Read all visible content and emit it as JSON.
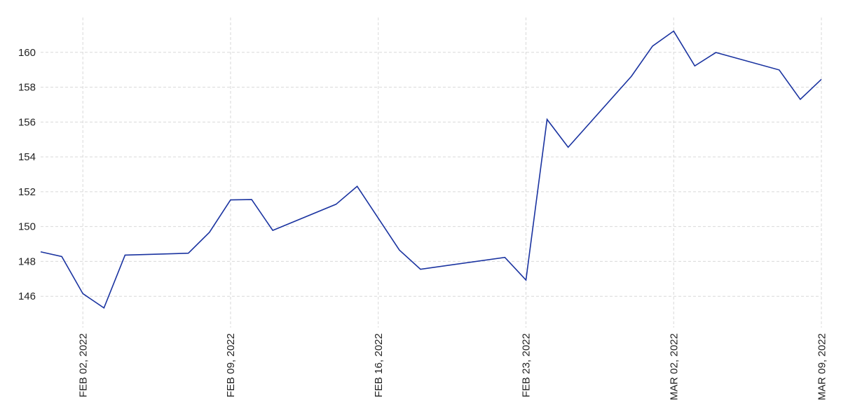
{
  "chart_data": {
    "type": "line",
    "title": "",
    "xlabel": "",
    "ylabel": "",
    "grid": true,
    "line_color": "#1a33a0",
    "xlim": [
      "2022-01-31",
      "2022-03-09"
    ],
    "ylim": [
      144.2,
      162.0
    ],
    "y_ticks": [
      146,
      148,
      150,
      152,
      154,
      156,
      158,
      160
    ],
    "x_ticks": [
      {
        "date": "2022-02-02",
        "label": "FEB 02, 2022"
      },
      {
        "date": "2022-02-09",
        "label": "FEB 09, 2022"
      },
      {
        "date": "2022-02-16",
        "label": "FEB 16, 2022"
      },
      {
        "date": "2022-02-23",
        "label": "FEB 23, 2022"
      },
      {
        "date": "2022-03-02",
        "label": "MAR 02, 2022"
      },
      {
        "date": "2022-03-09",
        "label": "MAR 09, 2022"
      }
    ],
    "series": [
      {
        "points": [
          {
            "x": "2022-01-31",
            "y": 148.55
          },
          {
            "x": "2022-02-01",
            "y": 148.28
          },
          {
            "x": "2022-02-02",
            "y": 146.15
          },
          {
            "x": "2022-02-03",
            "y": 145.33
          },
          {
            "x": "2022-02-04",
            "y": 148.36
          },
          {
            "x": "2022-02-07",
            "y": 148.47
          },
          {
            "x": "2022-02-08",
            "y": 149.67
          },
          {
            "x": "2022-02-09",
            "y": 151.53
          },
          {
            "x": "2022-02-10",
            "y": 151.55
          },
          {
            "x": "2022-02-11",
            "y": 149.78
          },
          {
            "x": "2022-02-14",
            "y": 151.28
          },
          {
            "x": "2022-02-15",
            "y": 152.31
          },
          {
            "x": "2022-02-17",
            "y": 148.65
          },
          {
            "x": "2022-02-18",
            "y": 147.55
          },
          {
            "x": "2022-02-22",
            "y": 148.23
          },
          {
            "x": "2022-02-23",
            "y": 146.93
          },
          {
            "x": "2022-02-24",
            "y": 156.15
          },
          {
            "x": "2022-02-25",
            "y": 154.55
          },
          {
            "x": "2022-02-28",
            "y": 158.63
          },
          {
            "x": "2022-03-01",
            "y": 160.36
          },
          {
            "x": "2022-03-02",
            "y": 161.22
          },
          {
            "x": "2022-03-03",
            "y": 159.22
          },
          {
            "x": "2022-03-04",
            "y": 159.99
          },
          {
            "x": "2022-03-07",
            "y": 158.99
          },
          {
            "x": "2022-03-08",
            "y": 157.3
          },
          {
            "x": "2022-03-09",
            "y": 158.45
          }
        ]
      }
    ]
  }
}
